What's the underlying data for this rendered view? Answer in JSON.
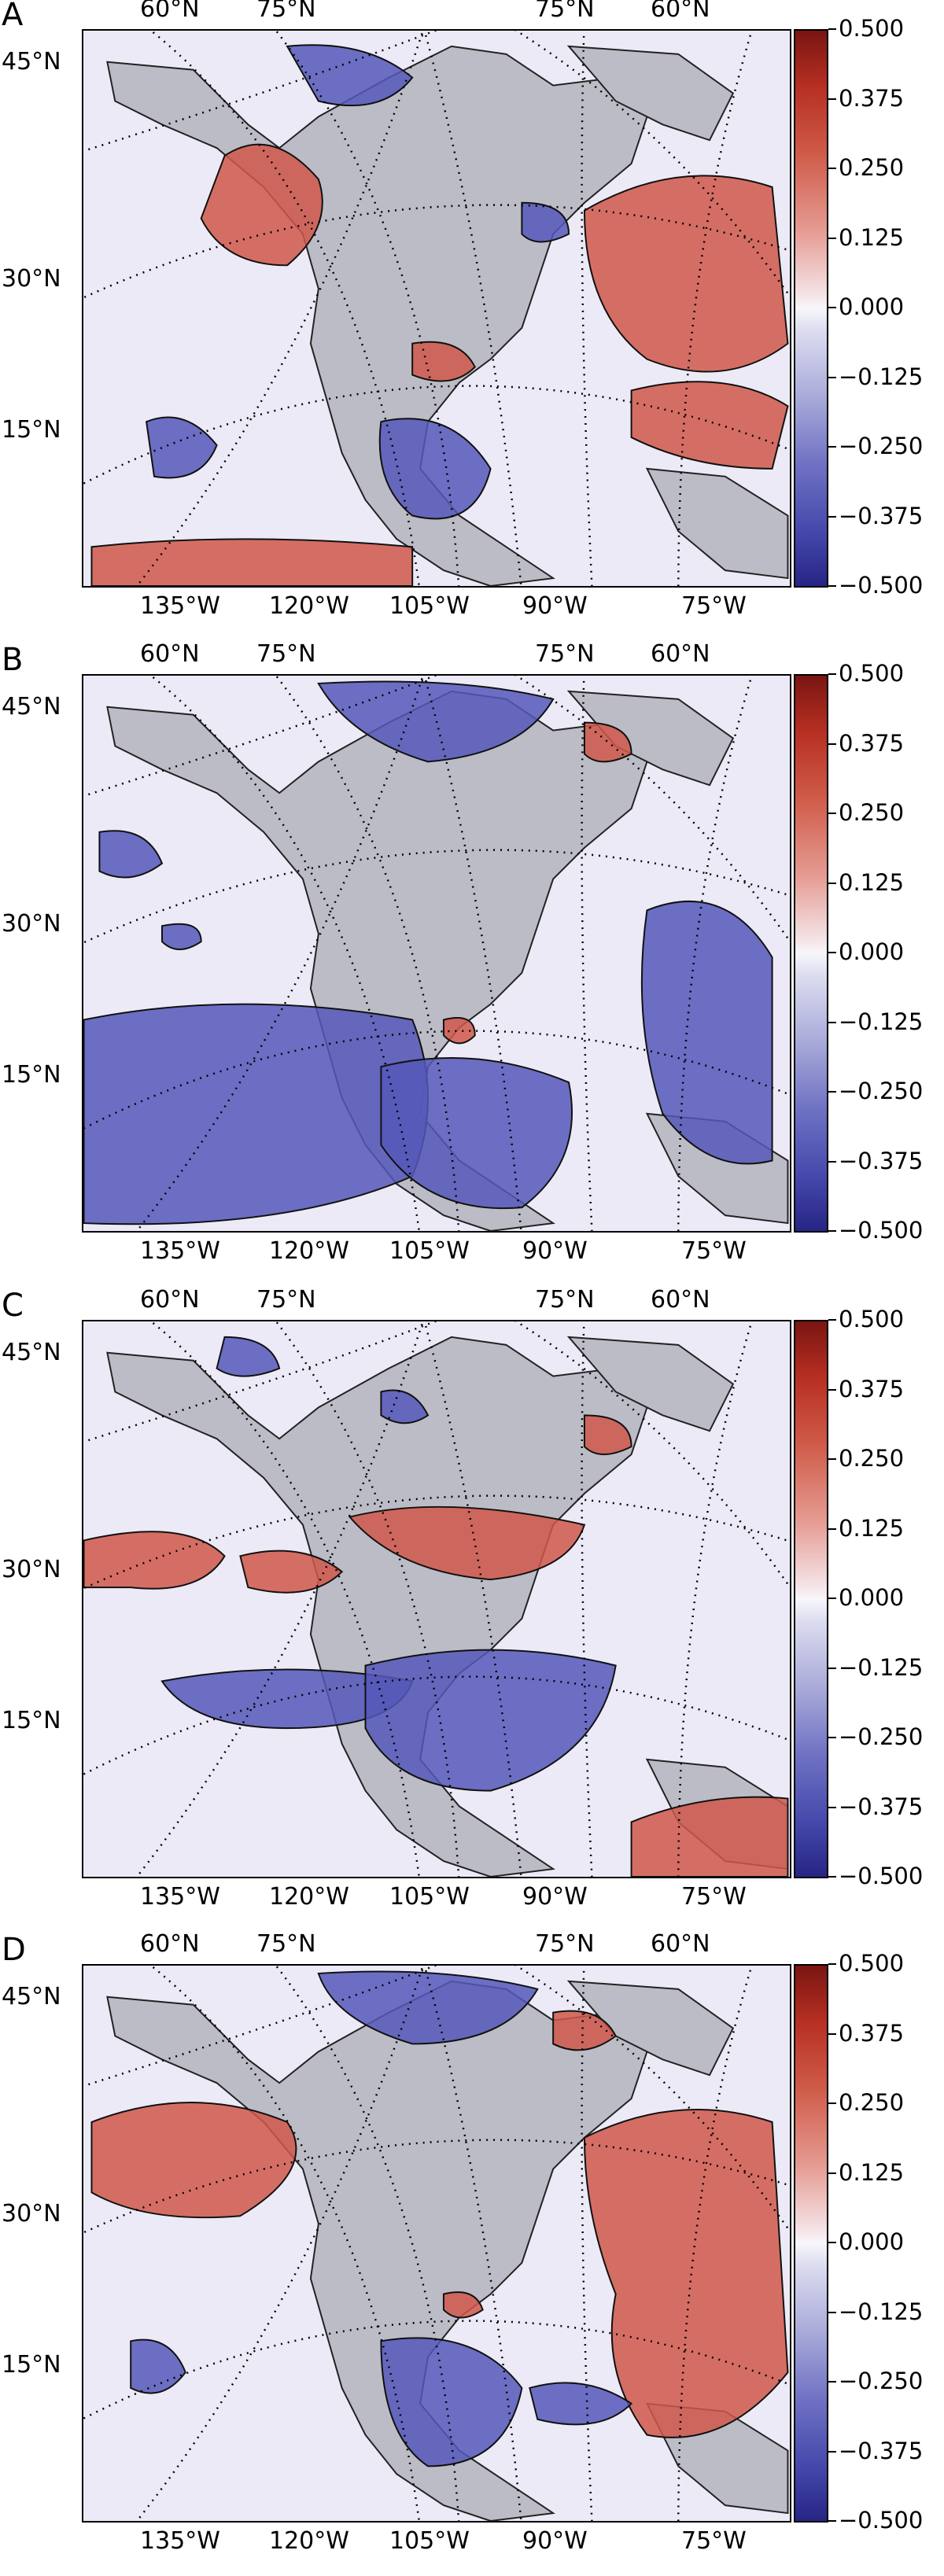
{
  "panels": [
    {
      "letter": "A",
      "lat_labels": [
        "45°N",
        "30°N",
        "15°N"
      ],
      "top_lat_labels": [
        "60°N",
        "75°N",
        "75°N",
        "60°N"
      ],
      "lon_labels": [
        "135°W",
        "120°W",
        "105°W",
        "90°W",
        "75°W"
      ]
    },
    {
      "letter": "B",
      "lat_labels": [
        "45°N",
        "30°N",
        "15°N"
      ],
      "top_lat_labels": [
        "60°N",
        "75°N",
        "75°N",
        "60°N"
      ],
      "lon_labels": [
        "135°W",
        "120°W",
        "105°W",
        "90°W",
        "75°W"
      ]
    },
    {
      "letter": "C",
      "lat_labels": [
        "45°N",
        "30°N",
        "15°N"
      ],
      "top_lat_labels": [
        "60°N",
        "75°N",
        "75°N",
        "60°N"
      ],
      "lon_labels": [
        "135°W",
        "120°W",
        "105°W",
        "90°W",
        "75°W"
      ]
    },
    {
      "letter": "D",
      "lat_labels": [
        "45°N",
        "30°N",
        "15°N"
      ],
      "top_lat_labels": [
        "60°N",
        "75°N",
        "75°N",
        "60°N"
      ],
      "lon_labels": [
        "135°W",
        "120°W",
        "105°W",
        "90°W",
        "75°W"
      ]
    }
  ],
  "colorbar": {
    "ticks": [
      "0.500",
      "0.375",
      "0.250",
      "0.125",
      "0.000",
      "−0.125",
      "−0.250",
      "−0.375",
      "−0.500"
    ],
    "max": 0.5,
    "min": -0.5,
    "colors": {
      "high": "#7a1512",
      "mid": "#f8f7fb",
      "low": "#262585"
    }
  },
  "colors": {
    "land": "#bcbcc6",
    "positive": "#d0584a",
    "negative": "#5558b8",
    "ocean": "#eceaf6"
  }
}
